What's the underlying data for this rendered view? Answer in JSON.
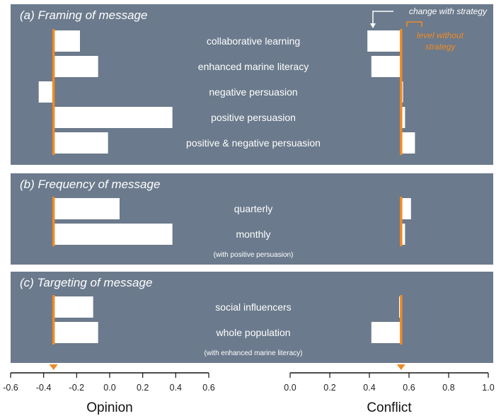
{
  "chart_data": {
    "type": "bar",
    "orientation": "horizontal",
    "colors": {
      "panel": "#6b7a8c",
      "bar": "#ffffff",
      "baseline": "#f08a24",
      "text": "#ffffff"
    },
    "annotations": {
      "change": "change with strategy",
      "level_line1": "level without",
      "level_line2": "strategy"
    },
    "opinion_axis": {
      "label": "Opinion",
      "min": -0.6,
      "max": 0.6,
      "ticks": [
        "-0.6",
        "-0.4",
        "-0.2",
        "0.0",
        "0.2",
        "0.4",
        "0.6"
      ],
      "baseline": -0.34
    },
    "conflict_axis": {
      "label": "Conflict",
      "min": 0.0,
      "max": 1.0,
      "ticks": [
        "0.0",
        "0.2",
        "0.4",
        "0.6",
        "0.8",
        "1.0"
      ],
      "baseline": 0.56
    },
    "sections": [
      {
        "title": "(a) Framing of message",
        "note": "",
        "rows": [
          {
            "label": "collaborative learning",
            "opinion": -0.18,
            "conflict": 0.39
          },
          {
            "label": "enhanced marine literacy",
            "opinion": -0.07,
            "conflict": 0.41
          },
          {
            "label": "negative persuasion",
            "opinion": -0.43,
            "conflict": 0.57
          },
          {
            "label": "positive persuasion",
            "opinion": 0.38,
            "conflict": 0.58
          },
          {
            "label": "positive & negative persuasion",
            "opinion": -0.01,
            "conflict": 0.63
          }
        ]
      },
      {
        "title": "(b) Frequency of message",
        "note": "(with positive persuasion)",
        "rows": [
          {
            "label": "quarterly",
            "opinion": 0.06,
            "conflict": 0.61
          },
          {
            "label": "monthly",
            "opinion": 0.38,
            "conflict": 0.58
          }
        ]
      },
      {
        "title": "(c) Targeting of message",
        "note": "(with enhanced marine literacy)",
        "rows": [
          {
            "label": "social influencers",
            "opinion": -0.1,
            "conflict": 0.55
          },
          {
            "label": "whole population",
            "opinion": -0.07,
            "conflict": 0.41
          }
        ]
      }
    ]
  }
}
